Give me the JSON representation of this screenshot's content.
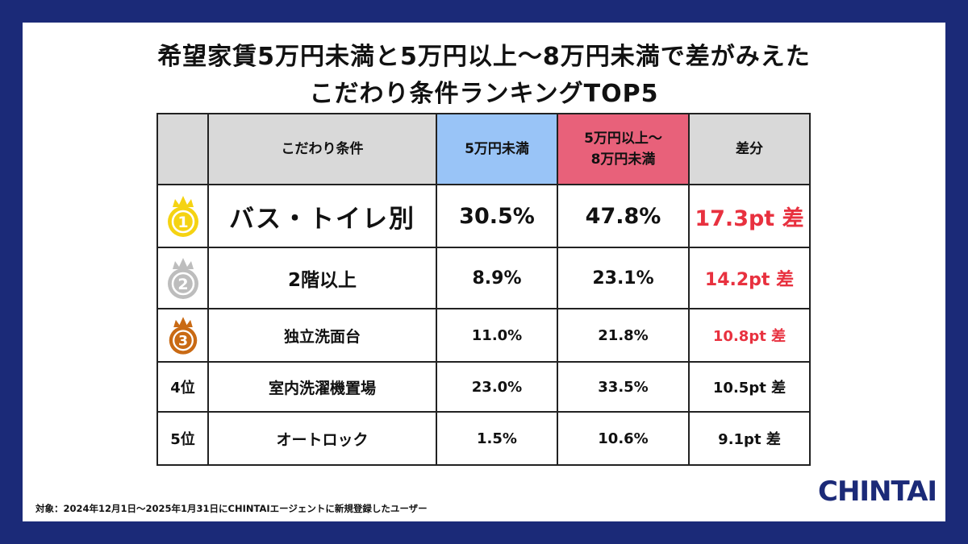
{
  "title": {
    "line1": "希望家賃5万円未満と5万円以上〜8万円未満で差がみえた",
    "line2": "こだわり条件ランキングTOP5"
  },
  "table": {
    "headers": {
      "rank": "",
      "condition": "こだわり条件",
      "col_a": "5万円未満",
      "col_b_line1": "5万円以上〜",
      "col_b_line2": "8万円未満",
      "diff": "差分"
    },
    "header_colors": {
      "col_a": "#99c4f7",
      "col_b": "#e8617a",
      "default": "#d9d9d9"
    },
    "rows": [
      {
        "rank": "1",
        "medal": "gold-medal-icon",
        "condition": "バス・トイレ別",
        "a": "30.5%",
        "b": "47.8%",
        "diff": "17.3pt 差"
      },
      {
        "rank": "2",
        "medal": "silver-medal-icon",
        "condition": "2階以上",
        "a": "8.9%",
        "b": "23.1%",
        "diff": "14.2pt 差"
      },
      {
        "rank": "3",
        "medal": "bronze-medal-icon",
        "condition": "独立洗面台",
        "a": "11.0%",
        "b": "21.8%",
        "diff": "10.8pt 差"
      },
      {
        "rank": "4位",
        "condition": "室内洗濯機置場",
        "a": "23.0%",
        "b": "33.5%",
        "diff": "10.5pt 差"
      },
      {
        "rank": "5位",
        "condition": "オートロック",
        "a": "1.5%",
        "b": "10.6%",
        "diff": "9.1pt 差"
      }
    ]
  },
  "chart_data": {
    "type": "table",
    "title": "希望家賃5万円未満と5万円以上〜8万円未満で差がみえた こだわり条件ランキングTOP5",
    "columns": [
      "こだわり条件",
      "5万円未満",
      "5万円以上〜8万円未満",
      "差分"
    ],
    "categories": [
      "バス・トイレ別",
      "2階以上",
      "独立洗面台",
      "室内洗濯機置場",
      "オートロック"
    ],
    "series": [
      {
        "name": "5万円未満",
        "values": [
          30.5,
          8.9,
          11.0,
          23.0,
          1.5
        ]
      },
      {
        "name": "5万円以上〜8万円未満",
        "values": [
          47.8,
          23.1,
          21.8,
          33.5,
          10.6
        ]
      },
      {
        "name": "差分",
        "values": [
          17.3,
          14.2,
          10.8,
          10.5,
          9.1
        ]
      }
    ]
  },
  "footnote": "対象：2024年12月1日〜2025年1月31日にCHINTAIエージェントに新規登録したユーザー",
  "logo": "CHINTAI",
  "colors": {
    "background": "#1b2a78",
    "highlight_red": "#e8313f",
    "gold": "#f5d312",
    "silver": "#bdbdbd",
    "bronze": "#c96a14"
  }
}
